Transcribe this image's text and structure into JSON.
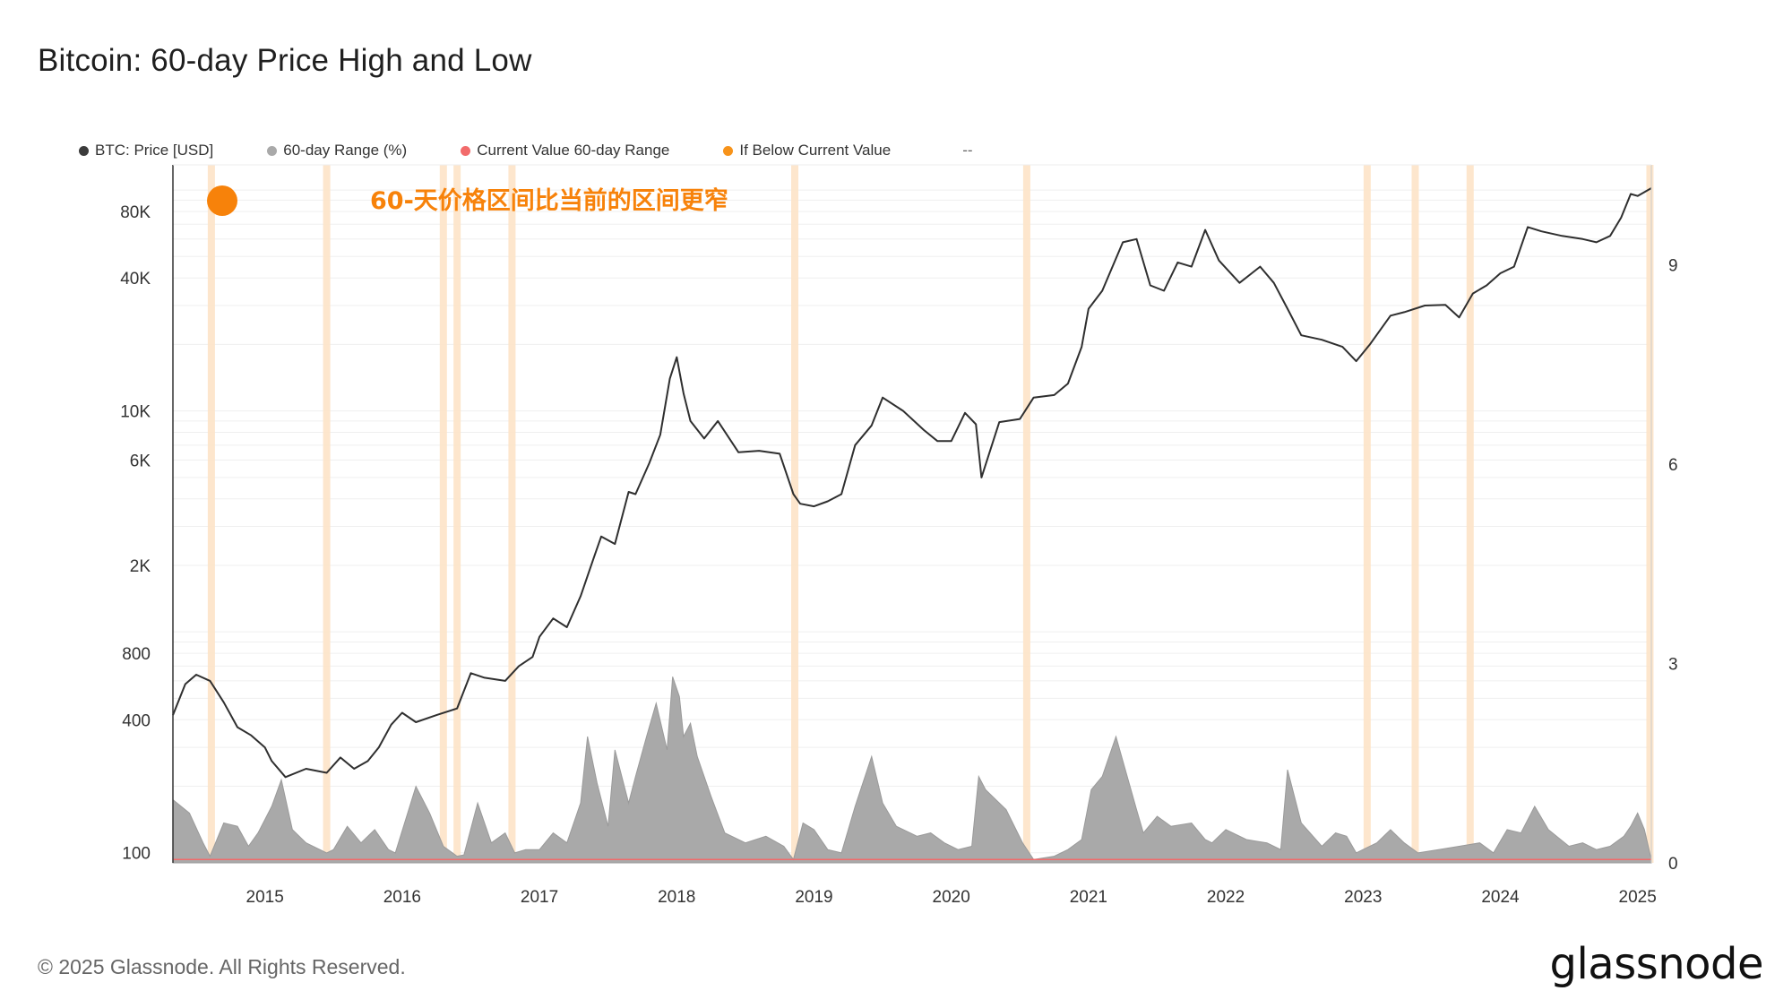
{
  "title": "Bitcoin: 60-day Price High and Low",
  "footer": "© 2025 Glassnode. All Rights Reserved.",
  "logo": "glassnode",
  "legend": [
    {
      "label": "BTC: Price [USD]",
      "color": "#3b3b3b"
    },
    {
      "label": "60-day Range (%)",
      "color": "#a9a9a9"
    },
    {
      "label": "Current Value 60-day Range",
      "color": "#f26b6b"
    },
    {
      "label": "If Below Current Value",
      "color": "#f7931a"
    }
  ],
  "legend_extra": "--",
  "chart_data": {
    "type": "line",
    "title": "Bitcoin: 60-day Price High and Low",
    "annotation": "60-天价格区间比当前的区间更窄",
    "annotation_color": "#f7820a",
    "x_ticks": [
      "2015",
      "2016",
      "2017",
      "2018",
      "2019",
      "2020",
      "2021",
      "2022",
      "2023",
      "2024",
      "2025"
    ],
    "x_range": [
      2014.33,
      2025.1
    ],
    "y_left": {
      "scale": "log",
      "range": [
        90,
        130000
      ],
      "ticks": [
        "80K",
        "40K",
        "10K",
        "6K",
        "2K",
        "800",
        "400",
        "100"
      ],
      "tick_values": [
        80000,
        40000,
        10000,
        6000,
        2000,
        800,
        400,
        100
      ]
    },
    "y_right": {
      "scale": "linear",
      "range": [
        0,
        10.5
      ],
      "ticks": [
        "9",
        "6",
        "3",
        "0"
      ],
      "tick_values": [
        9,
        6,
        3,
        0
      ]
    },
    "current_value_line": 0.05,
    "series": [
      {
        "name": "BTC: Price [USD]",
        "axis": "left",
        "color": "#2f2f2f",
        "x": [
          2014.33,
          2014.42,
          2014.5,
          2014.6,
          2014.7,
          2014.8,
          2014.9,
          2015.0,
          2015.05,
          2015.15,
          2015.3,
          2015.45,
          2015.55,
          2015.65,
          2015.75,
          2015.83,
          2015.92,
          2016.0,
          2016.1,
          2016.25,
          2016.4,
          2016.5,
          2016.6,
          2016.75,
          2016.85,
          2016.95,
          2017.0,
          2017.1,
          2017.2,
          2017.3,
          2017.4,
          2017.45,
          2017.55,
          2017.65,
          2017.7,
          2017.8,
          2017.88,
          2017.95,
          2018.0,
          2018.05,
          2018.1,
          2018.2,
          2018.3,
          2018.45,
          2018.6,
          2018.75,
          2018.85,
          2018.9,
          2019.0,
          2019.1,
          2019.2,
          2019.3,
          2019.42,
          2019.5,
          2019.65,
          2019.8,
          2019.9,
          2020.0,
          2020.1,
          2020.18,
          2020.22,
          2020.35,
          2020.5,
          2020.6,
          2020.75,
          2020.85,
          2020.95,
          2021.0,
          2021.1,
          2021.25,
          2021.35,
          2021.45,
          2021.55,
          2021.65,
          2021.75,
          2021.85,
          2021.95,
          2022.1,
          2022.25,
          2022.35,
          2022.45,
          2022.55,
          2022.7,
          2022.85,
          2022.95,
          2023.05,
          2023.2,
          2023.3,
          2023.45,
          2023.6,
          2023.7,
          2023.8,
          2023.9,
          2024.0,
          2024.1,
          2024.2,
          2024.3,
          2024.45,
          2024.6,
          2024.7,
          2024.8,
          2024.88,
          2024.95,
          2025.0,
          2025.1
        ],
        "y": [
          420,
          580,
          640,
          600,
          480,
          370,
          340,
          300,
          260,
          220,
          240,
          230,
          270,
          240,
          260,
          300,
          380,
          430,
          390,
          420,
          450,
          650,
          620,
          600,
          700,
          770,
          950,
          1150,
          1050,
          1450,
          2200,
          2700,
          2500,
          4300,
          4200,
          5800,
          7800,
          14000,
          17500,
          12000,
          9000,
          7500,
          9000,
          6500,
          6600,
          6400,
          4200,
          3800,
          3700,
          3900,
          4200,
          7000,
          8600,
          11500,
          10000,
          8200,
          7300,
          7300,
          9800,
          8700,
          5000,
          8900,
          9200,
          11500,
          11800,
          13300,
          19500,
          29000,
          35000,
          58000,
          60000,
          37000,
          35000,
          47000,
          45000,
          66000,
          48000,
          38000,
          45000,
          38000,
          29000,
          22000,
          21000,
          19500,
          16800,
          20000,
          27000,
          28000,
          30000,
          30200,
          26500,
          34000,
          37000,
          42000,
          45000,
          68000,
          65000,
          62000,
          60000,
          58000,
          62000,
          75000,
          96000,
          94000,
          102000
        ]
      },
      {
        "name": "60-day Range (%)",
        "axis": "right",
        "color": "#a9a9a9",
        "x": [
          2014.33,
          2014.45,
          2014.55,
          2014.6,
          2014.7,
          2014.8,
          2014.88,
          2014.95,
          2015.05,
          2015.12,
          2015.2,
          2015.3,
          2015.45,
          2015.5,
          2015.6,
          2015.7,
          2015.8,
          2015.9,
          2015.95,
          2016.1,
          2016.2,
          2016.3,
          2016.4,
          2016.45,
          2016.55,
          2016.65,
          2016.75,
          2016.82,
          2016.9,
          2017.0,
          2017.1,
          2017.2,
          2017.3,
          2017.35,
          2017.42,
          2017.5,
          2017.55,
          2017.65,
          2017.7,
          2017.78,
          2017.85,
          2017.93,
          2017.97,
          2018.02,
          2018.05,
          2018.1,
          2018.15,
          2018.25,
          2018.35,
          2018.5,
          2018.65,
          2018.78,
          2018.85,
          2018.92,
          2019.0,
          2019.1,
          2019.2,
          2019.3,
          2019.42,
          2019.5,
          2019.6,
          2019.75,
          2019.85,
          2019.95,
          2020.05,
          2020.15,
          2020.2,
          2020.25,
          2020.4,
          2020.52,
          2020.6,
          2020.75,
          2020.85,
          2020.95,
          2021.02,
          2021.1,
          2021.2,
          2021.35,
          2021.4,
          2021.5,
          2021.6,
          2021.75,
          2021.85,
          2021.9,
          2022.0,
          2022.15,
          2022.3,
          2022.4,
          2022.45,
          2022.55,
          2022.7,
          2022.8,
          2022.88,
          2022.95,
          2023.1,
          2023.2,
          2023.3,
          2023.4,
          2023.55,
          2023.7,
          2023.85,
          2023.95,
          2024.05,
          2024.15,
          2024.25,
          2024.35,
          2024.5,
          2024.6,
          2024.7,
          2024.8,
          2024.9,
          2024.95,
          2025.0,
          2025.05,
          2025.1
        ],
        "y": [
          0.95,
          0.75,
          0.3,
          0.1,
          0.6,
          0.55,
          0.25,
          0.45,
          0.85,
          1.25,
          0.5,
          0.3,
          0.15,
          0.2,
          0.55,
          0.3,
          0.5,
          0.2,
          0.15,
          1.15,
          0.75,
          0.25,
          0.1,
          0.12,
          0.9,
          0.3,
          0.45,
          0.15,
          0.2,
          0.2,
          0.45,
          0.3,
          0.9,
          1.9,
          1.2,
          0.55,
          1.7,
          0.9,
          1.3,
          1.9,
          2.4,
          1.7,
          2.8,
          2.5,
          1.9,
          2.1,
          1.6,
          1.0,
          0.45,
          0.3,
          0.4,
          0.25,
          0.05,
          0.6,
          0.5,
          0.2,
          0.15,
          0.85,
          1.6,
          0.9,
          0.55,
          0.4,
          0.45,
          0.3,
          0.2,
          0.25,
          1.3,
          1.1,
          0.8,
          0.3,
          0.05,
          0.1,
          0.2,
          0.35,
          1.1,
          1.3,
          1.9,
          0.8,
          0.45,
          0.7,
          0.55,
          0.6,
          0.35,
          0.3,
          0.5,
          0.35,
          0.3,
          0.2,
          1.4,
          0.6,
          0.25,
          0.45,
          0.4,
          0.15,
          0.3,
          0.5,
          0.3,
          0.15,
          0.2,
          0.25,
          0.3,
          0.15,
          0.5,
          0.45,
          0.85,
          0.5,
          0.25,
          0.3,
          0.2,
          0.25,
          0.4,
          0.55,
          0.75,
          0.5,
          0.05
        ]
      }
    ],
    "highlight_periods": [
      2014.61,
      2015.45,
      2016.3,
      2016.4,
      2016.8,
      2018.86,
      2020.55,
      2023.03,
      2023.38,
      2023.78,
      2025.09
    ]
  }
}
